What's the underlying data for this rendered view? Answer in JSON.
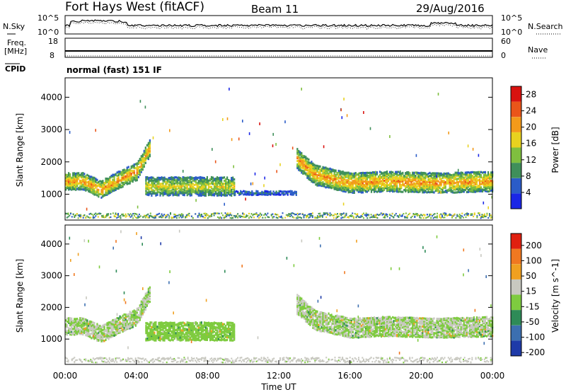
{
  "header": {
    "title": "Fort Hays West (fitACF)",
    "beam": "Beam 11",
    "date": "29/Aug/2016"
  },
  "noise_panel": {
    "left_label": "N.Sky",
    "right_label": "N.Search",
    "left_ticks": [
      "10^5",
      "10^0"
    ],
    "right_ticks": [
      "10^5",
      "10^0"
    ]
  },
  "freq_panel": {
    "left_label": "Freq.",
    "left_unit": "[MHz]",
    "right_label": "Nave",
    "left_ticks": [
      "18",
      "8"
    ],
    "right_ticks": [
      "60",
      "0"
    ],
    "cpid_label": "CPID",
    "mode_text": "normal (fast) 151 IF"
  },
  "chart_data": [
    {
      "type": "heatmap",
      "name": "power",
      "ylabel": "Slant Range [km]",
      "xlabel": "",
      "ylim": [
        200,
        4600
      ],
      "y_ticks": [
        "1000",
        "2000",
        "3000",
        "4000"
      ],
      "colorbar_label": "Power [dB]",
      "colorbar_ticks": [
        "4",
        "8",
        "12",
        "16",
        "20",
        "24",
        "28"
      ],
      "colorbar_colors": [
        "#1a26e6",
        "#2b5cc8",
        "#3f8f5a",
        "#7fbf3f",
        "#e8d21f",
        "#f39a1a",
        "#ea5519",
        "#d9120f"
      ],
      "colorbar_range": [
        0,
        30
      ],
      "regions": [
        {
          "x": [
            0.0,
            4.8
          ],
          "y_center": [
            1400,
            1400,
            1150,
            1450,
            1700,
            2500
          ],
          "x_pts": [
            0.0,
            1.0,
            2.0,
            3.0,
            4.0,
            4.8
          ],
          "width": 250,
          "level": 18
        },
        {
          "x": [
            4.5,
            9.5
          ],
          "y_center": [
            1250,
            1250
          ],
          "x_pts": [
            4.5,
            9.5
          ],
          "width": 280,
          "level": 14
        },
        {
          "x": [
            9.5,
            13.0
          ],
          "y_center": [
            1050,
            1050
          ],
          "x_pts": [
            9.5,
            13.0
          ],
          "width": 60,
          "level": 6
        },
        {
          "x": [
            13.0,
            24.0
          ],
          "y_center": [
            2100,
            1600,
            1350,
            1400,
            1350,
            1400
          ],
          "x_pts": [
            13.0,
            14.0,
            16.0,
            18.0,
            21.0,
            24.0
          ],
          "width": 300,
          "level": 18
        }
      ]
    },
    {
      "type": "heatmap",
      "name": "velocity",
      "ylabel": "Slant Range [km]",
      "xlabel": "Time UT",
      "x_ticks": [
        "00:00",
        "04:00",
        "08:00",
        "12:00",
        "16:00",
        "20:00",
        "00:00"
      ],
      "ylim": [
        200,
        4600
      ],
      "y_ticks": [
        "1000",
        "2000",
        "3000",
        "4000"
      ],
      "colorbar_label": "Velocity [m s^-1]",
      "colorbar_ticks": [
        "200",
        "100",
        "50",
        "15",
        "-15",
        "-50",
        "-100",
        "-200"
      ],
      "colorbar_colors": [
        "#1e3aa8",
        "#3c6fb0",
        "#2e8b57",
        "#7ecb3f",
        "#c8c8c0",
        "#f0a020",
        "#f07820",
        "#e02010"
      ],
      "colorbar_range": [
        -250,
        250
      ],
      "regions": [
        {
          "x": [
            0.0,
            4.8
          ],
          "y_center": [
            1400,
            1400,
            1150,
            1450,
            1700,
            2500
          ],
          "x_pts": [
            0.0,
            1.0,
            2.0,
            3.0,
            4.0,
            4.8
          ],
          "width": 250,
          "level": 0
        },
        {
          "x": [
            4.5,
            9.5
          ],
          "y_center": [
            1250,
            1250
          ],
          "x_pts": [
            4.5,
            9.5
          ],
          "width": 280,
          "level": -30
        },
        {
          "x": [
            13.0,
            24.0
          ],
          "y_center": [
            2100,
            1600,
            1350,
            1400,
            1350,
            1400
          ],
          "x_pts": [
            13.0,
            14.0,
            16.0,
            18.0,
            21.0,
            24.0
          ],
          "width": 300,
          "level": 0
        }
      ]
    }
  ]
}
